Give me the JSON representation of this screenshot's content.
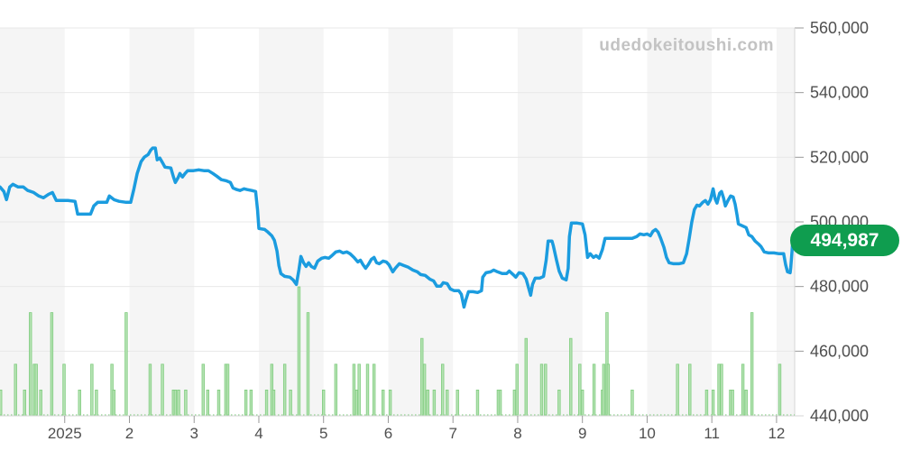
{
  "watermark": {
    "text": "udedokeitoushi.com"
  },
  "badge": {
    "label": "494,987"
  },
  "colors": {
    "band": "#f5f5f5",
    "grid": "#e8e8e8",
    "axis_line": "#d6d6d6",
    "tick": "#999999",
    "label": "#4f4f4f",
    "price_line": "#1b9cdf",
    "volume_fill": "#b5e2b3",
    "volume_stroke": "#7fcc7e",
    "baseline_dots": "#8fd38e",
    "badge_bg": "#0f9d4f"
  },
  "chart_data": {
    "type": "line",
    "title": "",
    "xlabel": "",
    "ylabel": "",
    "legend": "none",
    "grid": "horizontal",
    "x_axis": {
      "unit": "month",
      "t_range": [
        0,
        12.28
      ],
      "ticks": [
        {
          "t": 1,
          "label": "2025"
        },
        {
          "t": 2,
          "label": "2"
        },
        {
          "t": 3,
          "label": "3"
        },
        {
          "t": 4,
          "label": "4"
        },
        {
          "t": 5,
          "label": "5"
        },
        {
          "t": 6,
          "label": "6"
        },
        {
          "t": 7,
          "label": "7"
        },
        {
          "t": 8,
          "label": "8"
        },
        {
          "t": 9,
          "label": "9"
        },
        {
          "t": 10,
          "label": "10"
        },
        {
          "t": 11,
          "label": "11"
        },
        {
          "t": 12,
          "label": "12"
        }
      ]
    },
    "y_axis": {
      "min": 440000,
      "max": 560000,
      "tick_step": 20000,
      "tick_labels": [
        "560,000",
        "540,000",
        "520,000",
        "500,000",
        "480,000",
        "460,000",
        "440,000"
      ]
    },
    "shaded_month_bands": [
      [
        0,
        1
      ],
      [
        2,
        3
      ],
      [
        4,
        5
      ],
      [
        6,
        7
      ],
      [
        8,
        9
      ],
      [
        10,
        11
      ],
      [
        12,
        12.28
      ]
    ],
    "last_price": 494987,
    "price_series": {
      "name": "price",
      "points": [
        [
          0,
          510800
        ],
        [
          0.06,
          509400
        ],
        [
          0.1,
          506900
        ],
        [
          0.15,
          510800
        ],
        [
          0.2,
          511650
        ],
        [
          0.28,
          510800
        ],
        [
          0.36,
          510800
        ],
        [
          0.43,
          509700
        ],
        [
          0.52,
          509100
        ],
        [
          0.6,
          508000
        ],
        [
          0.67,
          507450
        ],
        [
          0.75,
          508550
        ],
        [
          0.81,
          509100
        ],
        [
          0.87,
          506600
        ],
        [
          1.05,
          506600
        ],
        [
          1.16,
          506350
        ],
        [
          1.2,
          502400
        ],
        [
          1.4,
          502400
        ],
        [
          1.45,
          504950
        ],
        [
          1.51,
          506050
        ],
        [
          1.65,
          506050
        ],
        [
          1.69,
          508000
        ],
        [
          1.76,
          506900
        ],
        [
          1.84,
          506350
        ],
        [
          1.95,
          506050
        ],
        [
          2.02,
          506050
        ],
        [
          2.07,
          510250
        ],
        [
          2.12,
          515000
        ],
        [
          2.18,
          518650
        ],
        [
          2.23,
          520050
        ],
        [
          2.29,
          520850
        ],
        [
          2.33,
          522250
        ],
        [
          2.36,
          522850
        ],
        [
          2.4,
          522850
        ],
        [
          2.43,
          519200
        ],
        [
          2.47,
          519750
        ],
        [
          2.51,
          518350
        ],
        [
          2.55,
          516950
        ],
        [
          2.64,
          516700
        ],
        [
          2.68,
          513900
        ],
        [
          2.71,
          512200
        ],
        [
          2.75,
          513600
        ],
        [
          2.78,
          515000
        ],
        [
          2.82,
          513900
        ],
        [
          2.86,
          515000
        ],
        [
          2.9,
          515850
        ],
        [
          2.99,
          515850
        ],
        [
          3.07,
          516100
        ],
        [
          3.15,
          515850
        ],
        [
          3.22,
          515850
        ],
        [
          3.29,
          515000
        ],
        [
          3.35,
          514150
        ],
        [
          3.42,
          513050
        ],
        [
          3.49,
          512750
        ],
        [
          3.56,
          512200
        ],
        [
          3.6,
          510500
        ],
        [
          3.66,
          510000
        ],
        [
          3.71,
          509700
        ],
        [
          3.77,
          510250
        ],
        [
          3.82,
          510000
        ],
        [
          3.89,
          509700
        ],
        [
          3.95,
          509400
        ],
        [
          3.98,
          503800
        ],
        [
          4,
          497950
        ],
        [
          4.09,
          497650
        ],
        [
          4.14,
          496850
        ],
        [
          4.2,
          495700
        ],
        [
          4.24,
          494300
        ],
        [
          4.28,
          490950
        ],
        [
          4.31,
          486500
        ],
        [
          4.34,
          484000
        ],
        [
          4.4,
          483150
        ],
        [
          4.48,
          482900
        ],
        [
          4.53,
          482050
        ],
        [
          4.58,
          480650
        ],
        [
          4.62,
          485350
        ],
        [
          4.65,
          489300
        ],
        [
          4.69,
          487350
        ],
        [
          4.73,
          486200
        ],
        [
          4.77,
          487350
        ],
        [
          4.81,
          486200
        ],
        [
          4.86,
          485650
        ],
        [
          4.91,
          487900
        ],
        [
          4.97,
          488750
        ],
        [
          5.02,
          489000
        ],
        [
          5.08,
          488750
        ],
        [
          5.13,
          489550
        ],
        [
          5.19,
          490700
        ],
        [
          5.25,
          490950
        ],
        [
          5.3,
          490400
        ],
        [
          5.36,
          490700
        ],
        [
          5.41,
          490150
        ],
        [
          5.47,
          489000
        ],
        [
          5.53,
          487600
        ],
        [
          5.57,
          488150
        ],
        [
          5.61,
          486750
        ],
        [
          5.65,
          485650
        ],
        [
          5.69,
          486750
        ],
        [
          5.74,
          488450
        ],
        [
          5.78,
          489000
        ],
        [
          5.82,
          487350
        ],
        [
          5.86,
          487050
        ],
        [
          5.92,
          487900
        ],
        [
          5.97,
          487600
        ],
        [
          6.01,
          486750
        ],
        [
          6.07,
          484550
        ],
        [
          6.11,
          485650
        ],
        [
          6.17,
          487050
        ],
        [
          6.24,
          486500
        ],
        [
          6.31,
          485950
        ],
        [
          6.38,
          485100
        ],
        [
          6.45,
          484550
        ],
        [
          6.5,
          483700
        ],
        [
          6.57,
          483450
        ],
        [
          6.64,
          482300
        ],
        [
          6.7,
          481750
        ],
        [
          6.75,
          480100
        ],
        [
          6.81,
          480100
        ],
        [
          6.85,
          481200
        ],
        [
          6.91,
          480900
        ],
        [
          6.96,
          479250
        ],
        [
          7.02,
          478700
        ],
        [
          7.09,
          478700
        ],
        [
          7.13,
          477550
        ],
        [
          7.17,
          473650
        ],
        [
          7.2,
          475900
        ],
        [
          7.24,
          478400
        ],
        [
          7.31,
          478400
        ],
        [
          7.38,
          478150
        ],
        [
          7.44,
          478700
        ],
        [
          7.46,
          482900
        ],
        [
          7.51,
          484250
        ],
        [
          7.58,
          484550
        ],
        [
          7.63,
          485100
        ],
        [
          7.69,
          484550
        ],
        [
          7.76,
          484000
        ],
        [
          7.83,
          484000
        ],
        [
          7.87,
          484800
        ],
        [
          7.93,
          483700
        ],
        [
          7.97,
          482900
        ],
        [
          8.02,
          484250
        ],
        [
          8.08,
          484000
        ],
        [
          8.13,
          482300
        ],
        [
          8.18,
          478700
        ],
        [
          8.2,
          477300
        ],
        [
          8.23,
          480650
        ],
        [
          8.27,
          482600
        ],
        [
          8.34,
          482600
        ],
        [
          8.4,
          483150
        ],
        [
          8.44,
          488150
        ],
        [
          8.47,
          494050
        ],
        [
          8.53,
          494050
        ],
        [
          8.55,
          492650
        ],
        [
          8.6,
          488150
        ],
        [
          8.64,
          484800
        ],
        [
          8.69,
          482600
        ],
        [
          8.75,
          482050
        ],
        [
          8.78,
          485650
        ],
        [
          8.8,
          495450
        ],
        [
          8.83,
          499650
        ],
        [
          8.92,
          499650
        ],
        [
          9,
          499350
        ],
        [
          9.04,
          496000
        ],
        [
          9.08,
          489000
        ],
        [
          9.12,
          490150
        ],
        [
          9.17,
          489000
        ],
        [
          9.21,
          489550
        ],
        [
          9.26,
          488750
        ],
        [
          9.31,
          491500
        ],
        [
          9.35,
          494900
        ],
        [
          9.45,
          494900
        ],
        [
          9.56,
          494900
        ],
        [
          9.67,
          494900
        ],
        [
          9.77,
          494900
        ],
        [
          9.84,
          495450
        ],
        [
          9.89,
          496250
        ],
        [
          9.95,
          496000
        ],
        [
          10,
          496250
        ],
        [
          10.05,
          495700
        ],
        [
          10.09,
          497100
        ],
        [
          10.13,
          497650
        ],
        [
          10.17,
          496850
        ],
        [
          10.21,
          494900
        ],
        [
          10.26,
          492100
        ],
        [
          10.3,
          489000
        ],
        [
          10.34,
          487350
        ],
        [
          10.41,
          487050
        ],
        [
          10.49,
          487050
        ],
        [
          10.56,
          487350
        ],
        [
          10.61,
          490150
        ],
        [
          10.65,
          494900
        ],
        [
          10.69,
          499900
        ],
        [
          10.73,
          503800
        ],
        [
          10.77,
          505200
        ],
        [
          10.81,
          504950
        ],
        [
          10.86,
          506050
        ],
        [
          10.9,
          506600
        ],
        [
          10.94,
          505500
        ],
        [
          10.98,
          506900
        ],
        [
          11.02,
          510250
        ],
        [
          11.05,
          507150
        ],
        [
          11.08,
          505800
        ],
        [
          11.12,
          508850
        ],
        [
          11.15,
          509400
        ],
        [
          11.18,
          507450
        ],
        [
          11.21,
          504950
        ],
        [
          11.25,
          506600
        ],
        [
          11.29,
          508000
        ],
        [
          11.33,
          507700
        ],
        [
          11.36,
          505500
        ],
        [
          11.39,
          502150
        ],
        [
          11.41,
          499350
        ],
        [
          11.47,
          498800
        ],
        [
          11.53,
          498250
        ],
        [
          11.57,
          496000
        ],
        [
          11.62,
          495450
        ],
        [
          11.67,
          494050
        ],
        [
          11.72,
          493200
        ],
        [
          11.76,
          492350
        ],
        [
          11.81,
          490700
        ],
        [
          11.88,
          490400
        ],
        [
          11.96,
          490400
        ],
        [
          12.04,
          490150
        ],
        [
          12.11,
          490150
        ],
        [
          12.14,
          486750
        ],
        [
          12.17,
          484550
        ],
        [
          12.21,
          484250
        ],
        [
          12.22,
          485950
        ],
        [
          12.24,
          490950
        ],
        [
          12.25,
          494300
        ],
        [
          12.28,
          494987
        ]
      ]
    },
    "volume_series": {
      "name": "volume",
      "units_max": 5,
      "points": [
        [
          0.01,
          1
        ],
        [
          0.24,
          2
        ],
        [
          0.38,
          1
        ],
        [
          0.47,
          4
        ],
        [
          0.53,
          2
        ],
        [
          0.56,
          2
        ],
        [
          0.63,
          1
        ],
        [
          0.8,
          4
        ],
        [
          0.99,
          2
        ],
        [
          1.23,
          1
        ],
        [
          1.42,
          2
        ],
        [
          1.49,
          1
        ],
        [
          1.73,
          2
        ],
        [
          1.76,
          1
        ],
        [
          1.95,
          4
        ],
        [
          2.32,
          2
        ],
        [
          2.51,
          2
        ],
        [
          2.68,
          1
        ],
        [
          2.71,
          1
        ],
        [
          2.76,
          1
        ],
        [
          2.87,
          1
        ],
        [
          3.14,
          2
        ],
        [
          3.21,
          1
        ],
        [
          3.38,
          1
        ],
        [
          3.49,
          2
        ],
        [
          3.52,
          2
        ],
        [
          3.8,
          1
        ],
        [
          3.88,
          1
        ],
        [
          4.12,
          1
        ],
        [
          4.2,
          2
        ],
        [
          4.23,
          1
        ],
        [
          4.4,
          2
        ],
        [
          4.49,
          1
        ],
        [
          4.62,
          5
        ],
        [
          4.76,
          4
        ],
        [
          5,
          1
        ],
        [
          5.19,
          2
        ],
        [
          5.47,
          2
        ],
        [
          5.51,
          1
        ],
        [
          5.55,
          2
        ],
        [
          5.68,
          2
        ],
        [
          5.78,
          2
        ],
        [
          5.92,
          1
        ],
        [
          6.03,
          1
        ],
        [
          6.52,
          3
        ],
        [
          6.56,
          2
        ],
        [
          6.61,
          1
        ],
        [
          6.71,
          1
        ],
        [
          6.84,
          2
        ],
        [
          6.91,
          1
        ],
        [
          7.07,
          1
        ],
        [
          7.38,
          1
        ],
        [
          7.7,
          1
        ],
        [
          7.73,
          1
        ],
        [
          7.95,
          1
        ],
        [
          7.99,
          2
        ],
        [
          8.13,
          3
        ],
        [
          8.37,
          2
        ],
        [
          8.43,
          2
        ],
        [
          8.64,
          1
        ],
        [
          8.82,
          3
        ],
        [
          8.96,
          2
        ],
        [
          9,
          1
        ],
        [
          9.18,
          2
        ],
        [
          9.31,
          1
        ],
        [
          9.33,
          2
        ],
        [
          9.38,
          4
        ],
        [
          9.4,
          2
        ],
        [
          9.77,
          1
        ],
        [
          10.47,
          2
        ],
        [
          10.66,
          2
        ],
        [
          10.92,
          1
        ],
        [
          11.02,
          1
        ],
        [
          11.11,
          2
        ],
        [
          11.15,
          2
        ],
        [
          11.29,
          1
        ],
        [
          11.32,
          1
        ],
        [
          11.48,
          2
        ],
        [
          11.53,
          1
        ],
        [
          11.62,
          4
        ],
        [
          12.05,
          2
        ]
      ]
    }
  }
}
